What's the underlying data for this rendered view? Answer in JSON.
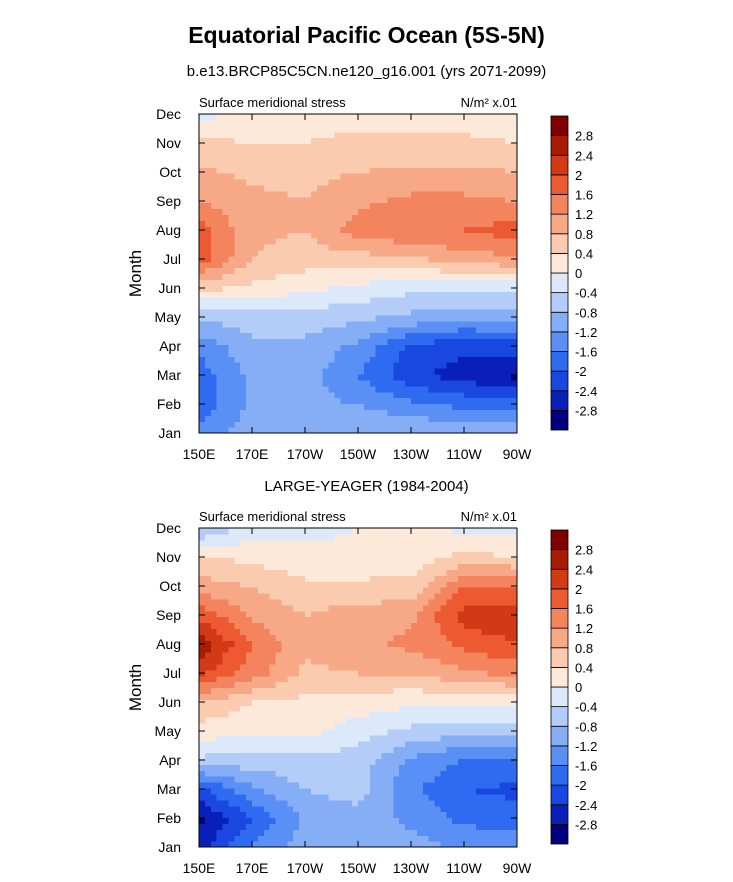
{
  "figure_title": "Equatorial Pacific Ocean (5S-5N)",
  "colors": {
    "levels": [
      -2.8,
      -2.4,
      -2,
      -1.6,
      -1.2,
      -0.8,
      -0.4,
      0,
      0.4,
      0.8,
      1.2,
      1.6,
      2,
      2.4,
      2.8
    ],
    "palette": [
      "#00007f",
      "#0a1fb8",
      "#1a47e0",
      "#2f6bf0",
      "#5a8ff5",
      "#86aef7",
      "#b3cdf8",
      "#dce9fb",
      "#fde9da",
      "#fbcbb0",
      "#f7a886",
      "#f3845e",
      "#ed5a32",
      "#d23a15",
      "#a81c05",
      "#7f0000"
    ]
  },
  "chart_data": [
    {
      "type": "heatmap",
      "subtitle": "b.e13.BRCP85C5CN.ne120_g16.001 (yrs 2071-2099)",
      "left_label": "Surface meridional stress",
      "right_label": "N/m² x.01",
      "ylabel": "Month",
      "x_ticks": [
        "150E",
        "170E",
        "170W",
        "150W",
        "130W",
        "110W",
        "90W"
      ],
      "y_ticks": [
        "Jan",
        "Feb",
        "Mar",
        "Apr",
        "May",
        "Jun",
        "Jul",
        "Aug",
        "Sep",
        "Oct",
        "Nov",
        "Dec"
      ],
      "colorbar_labels": [
        "-2.8",
        "-2.4",
        "-2",
        "-1.6",
        "-1.2",
        "-0.8",
        "-0.4",
        "0",
        "0.4",
        "0.8",
        "1.2",
        "1.6",
        "2",
        "2.4",
        "2.8"
      ],
      "values": [
        [
          -1.4,
          -1.0,
          -0.9,
          -0.8,
          -0.8,
          -0.9,
          -0.9
        ],
        [
          -1.9,
          -1.1,
          -1.1,
          -1.2,
          -1.5,
          -1.7,
          -1.8
        ],
        [
          -1.8,
          -1.1,
          -1.0,
          -1.6,
          -2.3,
          -2.6,
          -2.9
        ],
        [
          -1.5,
          -0.9,
          -0.9,
          -1.3,
          -2.1,
          -2.3,
          -2.2
        ],
        [
          -0.7,
          -0.6,
          -0.6,
          -0.7,
          -0.9,
          -1.1,
          -1.0
        ],
        [
          0.5,
          0.3,
          0.1,
          -0.1,
          -0.3,
          -0.3,
          -0.3
        ],
        [
          1.8,
          0.8,
          0.6,
          0.6,
          0.7,
          1.0,
          1.1
        ],
        [
          1.8,
          0.9,
          0.8,
          1.4,
          1.6,
          1.6,
          1.8
        ],
        [
          1.2,
          0.9,
          0.8,
          1.1,
          1.3,
          1.3,
          1.2
        ],
        [
          0.9,
          0.7,
          0.7,
          0.8,
          0.9,
          0.9,
          0.8
        ],
        [
          0.5,
          0.4,
          0.4,
          0.5,
          0.5,
          0.5,
          0.4
        ],
        [
          -0.2,
          0.2,
          0.2,
          0.3,
          0.2,
          0.2,
          0.1
        ]
      ]
    },
    {
      "type": "heatmap",
      "subtitle": "LARGE-YEAGER (1984-2004)",
      "left_label": "Surface meridional stress",
      "right_label": "N/m² x.01",
      "ylabel": "Month",
      "x_ticks": [
        "150E",
        "170E",
        "170W",
        "150W",
        "130W",
        "110W",
        "90W"
      ],
      "y_ticks": [
        "Jan",
        "Feb",
        "Mar",
        "Apr",
        "May",
        "Jun",
        "Jul",
        "Aug",
        "Sep",
        "Oct",
        "Nov",
        "Dec"
      ],
      "colorbar_labels": [
        "-2.8",
        "-2.4",
        "-2",
        "-1.6",
        "-1.2",
        "-0.8",
        "-0.4",
        "0",
        "0.4",
        "0.8",
        "1.2",
        "1.6",
        "2",
        "2.4",
        "2.8"
      ],
      "values": [
        [
          -2.6,
          -1.5,
          -1.0,
          -0.9,
          -1.0,
          -1.3,
          -1.3
        ],
        [
          -2.9,
          -2.0,
          -1.1,
          -1.0,
          -1.3,
          -1.7,
          -1.8
        ],
        [
          -2.1,
          -1.3,
          -0.8,
          -0.6,
          -1.5,
          -2.0,
          -2.1
        ],
        [
          -0.5,
          -0.6,
          -0.5,
          -0.6,
          -1.3,
          -1.6,
          -1.6
        ],
        [
          0.2,
          0.1,
          0.1,
          -0.2,
          -0.5,
          -0.7,
          -0.7
        ],
        [
          0.8,
          0.4,
          0.3,
          0.2,
          0.1,
          0.1,
          0.1
        ],
        [
          2.1,
          1.4,
          0.7,
          0.8,
          0.8,
          1.1,
          1.3
        ],
        [
          2.7,
          1.6,
          0.9,
          1.1,
          1.3,
          1.7,
          2.0
        ],
        [
          1.9,
          1.1,
          0.8,
          1.0,
          1.1,
          2.2,
          2.3
        ],
        [
          1.0,
          0.8,
          0.5,
          0.5,
          0.5,
          1.6,
          1.6
        ],
        [
          0.4,
          0.3,
          0.1,
          0.1,
          0.2,
          0.5,
          0.4
        ],
        [
          -0.8,
          -0.2,
          -0.1,
          0.0,
          0.1,
          -0.1,
          -0.1
        ]
      ]
    }
  ]
}
